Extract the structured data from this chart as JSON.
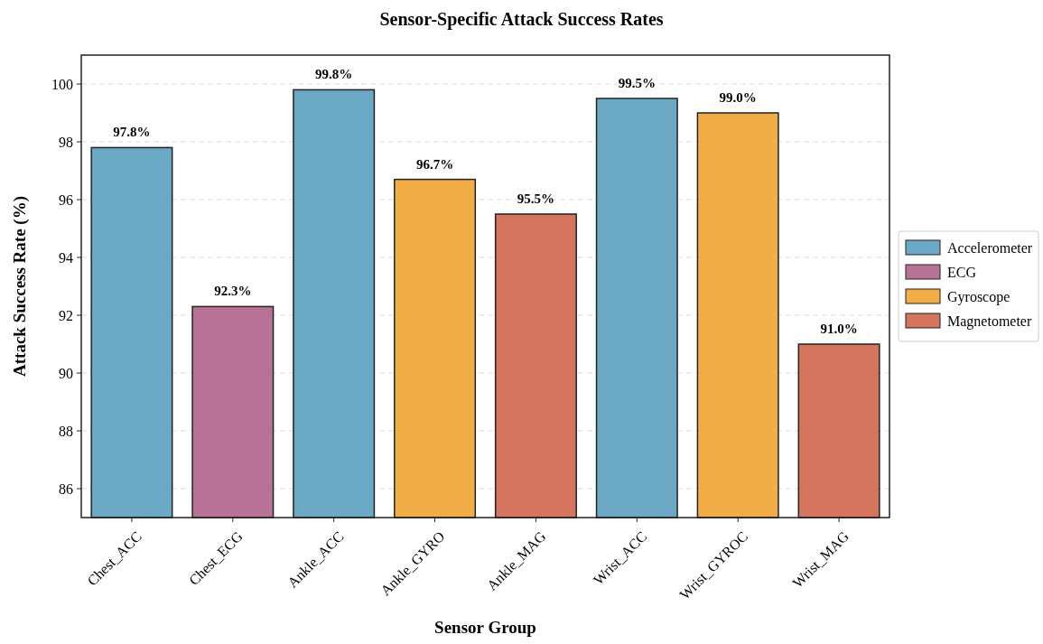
{
  "chart_data": {
    "type": "bar",
    "title": "Sensor-Specific Attack Success Rates",
    "xlabel": "Sensor Group",
    "ylabel": "Attack Success Rate (%)",
    "categories": [
      "Chest_ACC",
      "Chest_ECG",
      "Ankle_ACC",
      "Ankle_GYRO",
      "Ankle_MAG",
      "Wrist_ACC",
      "Wrist_GYROC",
      "Wrist_MAG"
    ],
    "series": [
      {
        "name": "Accelerometer",
        "color": "#5a9fbf",
        "values": [
          97.8,
          null,
          99.8,
          null,
          null,
          99.5,
          null,
          null
        ],
        "value_labels": [
          "97.8%",
          null,
          "99.8%",
          null,
          null,
          "99.5%",
          null,
          null
        ]
      },
      {
        "name": "ECG",
        "color": "#b0638c",
        "values": [
          null,
          92.3,
          null,
          null,
          null,
          null,
          null,
          null
        ],
        "value_labels": [
          null,
          "92.3%",
          null,
          null,
          null,
          null,
          null,
          null
        ]
      },
      {
        "name": "Gyroscope",
        "color": "#f0a432",
        "values": [
          null,
          null,
          null,
          96.7,
          null,
          null,
          99.0,
          null
        ],
        "value_labels": [
          null,
          null,
          null,
          "96.7%",
          null,
          null,
          "99.0%",
          null
        ]
      },
      {
        "name": "Magnetometer",
        "color": "#d2664b",
        "values": [
          null,
          null,
          null,
          null,
          95.5,
          null,
          null,
          91.0
        ],
        "value_labels": [
          null,
          null,
          null,
          null,
          "95.5%",
          null,
          null,
          "91.0%"
        ]
      }
    ],
    "ylim": [
      85,
      101
    ],
    "yticks": [
      86,
      88,
      90,
      92,
      94,
      96,
      98,
      100
    ],
    "grid": "y",
    "legend": "right"
  }
}
